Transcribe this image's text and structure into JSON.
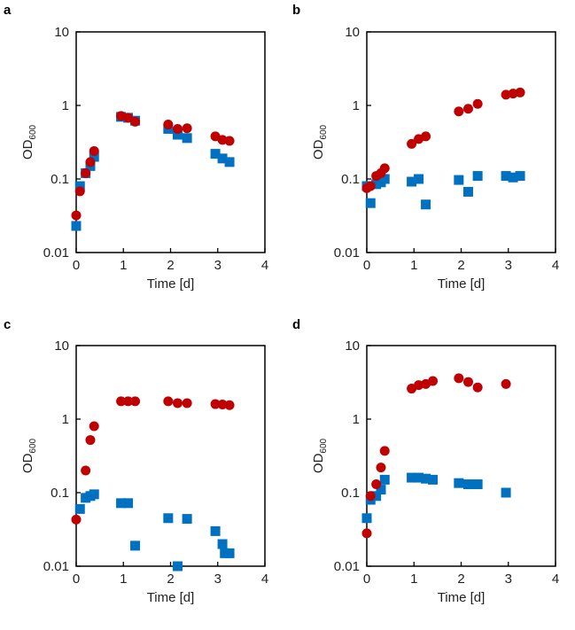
{
  "colors": {
    "series1": "#C00000",
    "series2": "#0070C0"
  },
  "chart_data": [
    {
      "type": "scatter",
      "panel": "a",
      "xlabel": "Time [d]",
      "ylabel": "OD",
      "ylabel_sub": "600",
      "yscale": "log",
      "ylim": [
        0.01,
        10
      ],
      "xlim": [
        0,
        4
      ],
      "yticks": [
        "10",
        "1",
        "0.1",
        "0.01"
      ],
      "xticks": [
        "0",
        "1",
        "2",
        "3",
        "4"
      ],
      "series": [
        {
          "name": "red circles",
          "marker": "circle",
          "x": [
            0,
            0.08,
            0.2,
            0.3,
            0.38,
            0.95,
            1.1,
            1.25,
            1.95,
            2.15,
            2.35,
            2.95,
            3.1,
            3.25
          ],
          "y": [
            0.032,
            0.068,
            0.12,
            0.17,
            0.24,
            0.72,
            0.68,
            0.6,
            0.55,
            0.48,
            0.49,
            0.38,
            0.34,
            0.33
          ]
        },
        {
          "name": "blue squares",
          "marker": "square",
          "x": [
            0,
            0.08,
            0.2,
            0.3,
            0.38,
            0.95,
            1.1,
            1.25,
            1.95,
            2.15,
            2.35,
            2.95,
            3.1,
            3.25
          ],
          "y": [
            0.023,
            0.08,
            0.12,
            0.15,
            0.2,
            0.7,
            0.68,
            0.62,
            0.48,
            0.4,
            0.36,
            0.22,
            0.19,
            0.17
          ]
        }
      ]
    },
    {
      "type": "scatter",
      "panel": "b",
      "xlabel": "Time [d]",
      "ylabel": "OD",
      "ylabel_sub": "600",
      "yscale": "log",
      "ylim": [
        0.01,
        10
      ],
      "xlim": [
        0,
        4
      ],
      "yticks": [
        "10",
        "1",
        "0.1",
        "0.01"
      ],
      "xticks": [
        "0",
        "1",
        "2",
        "3",
        "4"
      ],
      "series": [
        {
          "name": "red circles",
          "marker": "circle",
          "x": [
            0,
            0.08,
            0.2,
            0.3,
            0.38,
            0.95,
            1.1,
            1.25,
            1.95,
            2.15,
            2.35,
            2.95,
            3.1,
            3.25
          ],
          "y": [
            0.075,
            0.08,
            0.11,
            0.12,
            0.14,
            0.3,
            0.35,
            0.38,
            0.83,
            0.9,
            1.05,
            1.4,
            1.45,
            1.5
          ]
        },
        {
          "name": "blue squares",
          "marker": "square",
          "x": [
            0,
            0.08,
            0.2,
            0.3,
            0.38,
            0.95,
            1.1,
            1.25,
            1.95,
            2.15,
            2.35,
            2.95,
            3.1,
            3.25
          ],
          "y": [
            0.08,
            0.047,
            0.085,
            0.09,
            0.1,
            0.092,
            0.1,
            0.045,
            0.097,
            0.067,
            0.11,
            0.11,
            0.105,
            0.11
          ]
        }
      ]
    },
    {
      "type": "scatter",
      "panel": "c",
      "xlabel": "Time [d]",
      "ylabel": "OD",
      "ylabel_sub": "600",
      "yscale": "log",
      "ylim": [
        0.01,
        10
      ],
      "xlim": [
        0,
        4
      ],
      "yticks": [
        "10",
        "1",
        "0.1",
        "0.01"
      ],
      "xticks": [
        "0",
        "1",
        "2",
        "3",
        "4"
      ],
      "series": [
        {
          "name": "red circles",
          "marker": "circle",
          "x": [
            0,
            0.2,
            0.3,
            0.38,
            0.95,
            1.1,
            1.25,
            1.95,
            2.15,
            2.35,
            2.95,
            3.1,
            3.25
          ],
          "y": [
            0.043,
            0.2,
            0.52,
            0.8,
            1.75,
            1.75,
            1.75,
            1.75,
            1.65,
            1.65,
            1.6,
            1.58,
            1.55
          ]
        },
        {
          "name": "blue squares",
          "marker": "square",
          "x": [
            0.08,
            0.2,
            0.3,
            0.38,
            0.95,
            1.1,
            1.25,
            1.95,
            2.15,
            2.35,
            2.95,
            3.1,
            3.15,
            3.25
          ],
          "y": [
            0.06,
            0.085,
            0.09,
            0.095,
            0.072,
            0.072,
            0.019,
            0.045,
            0.01,
            0.044,
            0.03,
            0.02,
            0.015,
            0.015
          ]
        }
      ]
    },
    {
      "type": "scatter",
      "panel": "d",
      "xlabel": "Time [d]",
      "ylabel": "OD",
      "ylabel_sub": "600",
      "yscale": "log",
      "ylim": [
        0.01,
        10
      ],
      "xlim": [
        0,
        4
      ],
      "yticks": [
        "10",
        "1",
        "0.1",
        "0.01"
      ],
      "xticks": [
        "0",
        "1",
        "2",
        "3",
        "4"
      ],
      "series": [
        {
          "name": "red circles",
          "marker": "circle",
          "x": [
            0,
            0.08,
            0.2,
            0.3,
            0.38,
            0.95,
            1.1,
            1.25,
            1.4,
            1.95,
            2.15,
            2.35,
            2.95
          ],
          "y": [
            0.028,
            0.09,
            0.13,
            0.22,
            0.37,
            2.6,
            2.9,
            3.0,
            3.3,
            3.6,
            3.2,
            2.7,
            3.0
          ]
        },
        {
          "name": "blue squares",
          "marker": "square",
          "x": [
            0,
            0.08,
            0.2,
            0.3,
            0.38,
            0.95,
            1.1,
            1.25,
            1.4,
            1.95,
            2.15,
            2.35,
            2.95
          ],
          "y": [
            0.045,
            0.08,
            0.09,
            0.11,
            0.15,
            0.16,
            0.16,
            0.155,
            0.15,
            0.135,
            0.13,
            0.13,
            0.1
          ]
        }
      ]
    }
  ]
}
